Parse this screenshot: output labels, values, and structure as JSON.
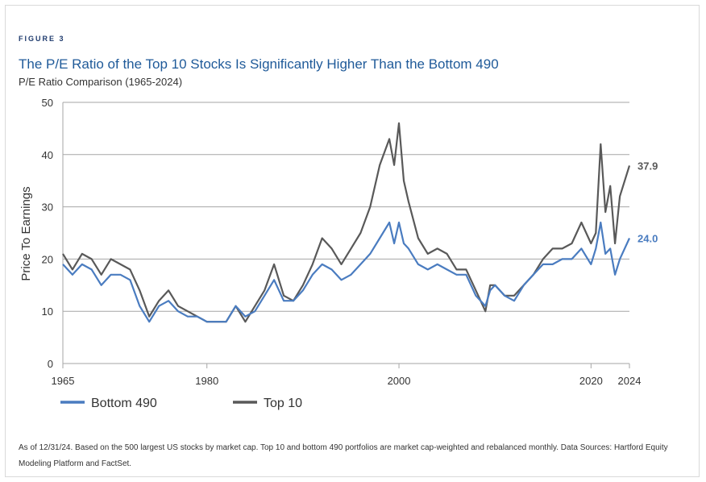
{
  "figure_label": "FIGURE 3",
  "footnote": "As of 12/31/24. Based on the 500 largest US stocks by market cap. Top 10 and bottom 490 portfolios are market cap-weighted and rebalanced monthly. Data Sources: Hartford Equity Modeling Platform and FactSet.",
  "chart_data": {
    "type": "line",
    "title": "The P/E Ratio of the Top 10 Stocks Is Significantly Higher Than the Bottom 490",
    "subtitle": "P/E Ratio Comparison (1965-2024)",
    "xlabel": "",
    "ylabel": "Price To Earnings",
    "xlim": [
      1965,
      2024
    ],
    "ylim": [
      0,
      50
    ],
    "x_ticks": [
      1965,
      1980,
      2000,
      2020,
      2024
    ],
    "y_ticks": [
      0,
      10,
      20,
      30,
      40,
      50
    ],
    "grid": "horizontal",
    "legend_position": "bottom-left",
    "end_labels": {
      "Top 10": "37.9",
      "Bottom 490": "24.0"
    },
    "colors": {
      "Top 10": "#595959",
      "Bottom 490": "#4a7cc0",
      "grid": "#a6a6a6"
    },
    "series": [
      {
        "name": "Top 10",
        "x": [
          1965,
          1966,
          1967,
          1968,
          1969,
          1970,
          1971,
          1972,
          1973,
          1974,
          1975,
          1976,
          1977,
          1978,
          1979,
          1980,
          1981,
          1982,
          1983,
          1984,
          1985,
          1986,
          1987,
          1988,
          1989,
          1990,
          1991,
          1992,
          1993,
          1994,
          1995,
          1996,
          1997,
          1998,
          1999,
          1999.5,
          2000,
          2000.5,
          2001,
          2002,
          2003,
          2004,
          2005,
          2006,
          2007,
          2008,
          2009,
          2009.5,
          2010,
          2011,
          2012,
          2013,
          2014,
          2015,
          2016,
          2017,
          2018,
          2019,
          2020,
          2020.5,
          2021,
          2021.5,
          2022,
          2022.5,
          2023,
          2024
        ],
        "y": [
          21,
          18,
          21,
          20,
          17,
          20,
          19,
          18,
          14,
          9,
          12,
          14,
          11,
          10,
          9,
          8,
          8,
          8,
          11,
          8,
          11,
          14,
          19,
          13,
          12,
          15,
          19,
          24,
          22,
          19,
          22,
          25,
          30,
          38,
          43,
          38,
          46,
          35,
          31,
          24,
          21,
          22,
          21,
          18,
          18,
          14,
          10,
          15,
          15,
          13,
          13,
          15,
          17,
          20,
          22,
          22,
          23,
          27,
          23,
          25,
          42,
          29,
          34,
          23,
          32,
          37.9
        ]
      },
      {
        "name": "Bottom 490",
        "x": [
          1965,
          1966,
          1967,
          1968,
          1969,
          1970,
          1971,
          1972,
          1973,
          1974,
          1975,
          1976,
          1977,
          1978,
          1979,
          1980,
          1981,
          1982,
          1983,
          1984,
          1985,
          1986,
          1987,
          1988,
          1989,
          1990,
          1991,
          1992,
          1993,
          1994,
          1995,
          1996,
          1997,
          1998,
          1999,
          1999.5,
          2000,
          2000.5,
          2001,
          2002,
          2003,
          2004,
          2005,
          2006,
          2007,
          2008,
          2009,
          2009.5,
          2010,
          2011,
          2012,
          2013,
          2014,
          2015,
          2016,
          2017,
          2018,
          2019,
          2020,
          2020.5,
          2021,
          2021.5,
          2022,
          2022.5,
          2023,
          2024
        ],
        "y": [
          19,
          17,
          19,
          18,
          15,
          17,
          17,
          16,
          11,
          8,
          11,
          12,
          10,
          9,
          9,
          8,
          8,
          8,
          11,
          9,
          10,
          13,
          16,
          12,
          12,
          14,
          17,
          19,
          18,
          16,
          17,
          19,
          21,
          24,
          27,
          23,
          27,
          23,
          22,
          19,
          18,
          19,
          18,
          17,
          17,
          13,
          11,
          14,
          15,
          13,
          12,
          15,
          17,
          19,
          19,
          20,
          20,
          22,
          19,
          22,
          27,
          21,
          22,
          17,
          20,
          24.0
        ]
      }
    ]
  }
}
